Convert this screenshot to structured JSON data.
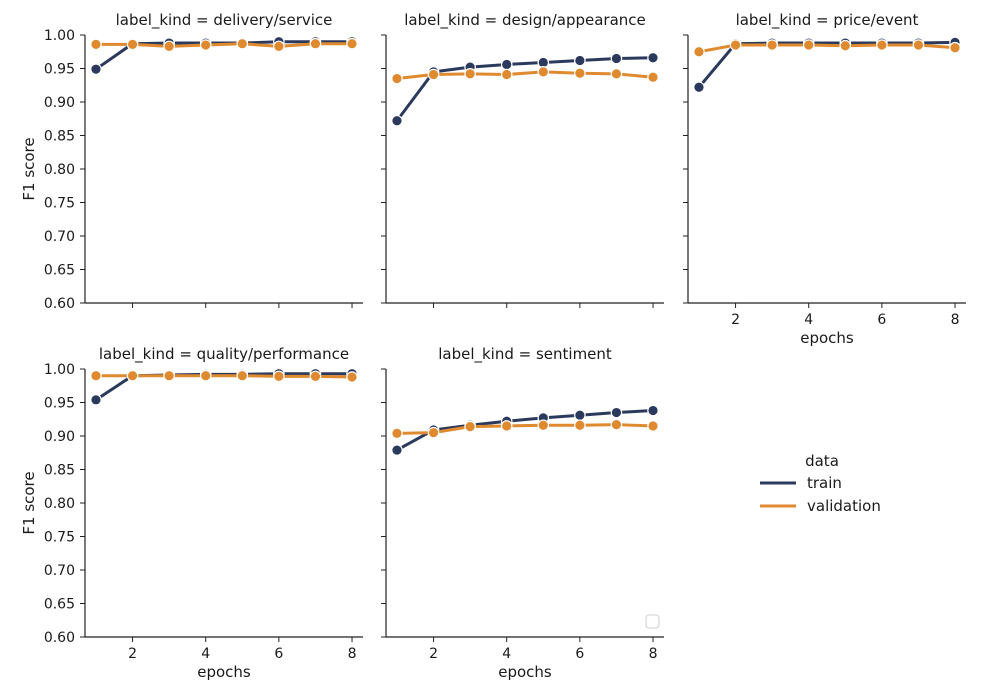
{
  "chart_data": {
    "type": "line",
    "layout": "facet-grid",
    "colors": {
      "train": "#2b3a5c",
      "validation": "#e08a30"
    },
    "ylabel": "F1 score",
    "xlabel": "epochs",
    "ylim": [
      0.6,
      1.0
    ],
    "yticks": [
      "0.60",
      "0.65",
      "0.70",
      "0.75",
      "0.80",
      "0.85",
      "0.90",
      "0.95",
      "1.00"
    ],
    "xlim": [
      0.7,
      8.3
    ],
    "xticks": [
      "2",
      "4",
      "6",
      "8"
    ],
    "x": [
      1,
      2,
      3,
      4,
      5,
      6,
      7,
      8
    ],
    "panels": [
      {
        "title": "label_kind = delivery/service",
        "series": [
          {
            "name": "train",
            "values": [
              0.949,
              0.987,
              0.988,
              0.988,
              0.988,
              0.99,
              0.99,
              0.99
            ]
          },
          {
            "name": "validation",
            "values": [
              0.986,
              0.986,
              0.983,
              0.985,
              0.987,
              0.983,
              0.987,
              0.987
            ]
          }
        ]
      },
      {
        "title": "label_kind = design/appearance",
        "series": [
          {
            "name": "train",
            "values": [
              0.872,
              0.945,
              0.952,
              0.956,
              0.959,
              0.962,
              0.965,
              0.966
            ]
          },
          {
            "name": "validation",
            "values": [
              0.935,
              0.941,
              0.942,
              0.941,
              0.945,
              0.943,
              0.942,
              0.937
            ]
          }
        ]
      },
      {
        "title": "label_kind = price/event",
        "series": [
          {
            "name": "train",
            "values": [
              0.922,
              0.987,
              0.988,
              0.988,
              0.988,
              0.988,
              0.988,
              0.989
            ]
          },
          {
            "name": "validation",
            "values": [
              0.975,
              0.985,
              0.985,
              0.985,
              0.984,
              0.985,
              0.985,
              0.981
            ]
          }
        ]
      },
      {
        "title": "label_kind = quality/performance",
        "series": [
          {
            "name": "train",
            "values": [
              0.954,
              0.99,
              0.991,
              0.992,
              0.992,
              0.993,
              0.993,
              0.993
            ]
          },
          {
            "name": "validation",
            "values": [
              0.99,
              0.99,
              0.99,
              0.99,
              0.99,
              0.989,
              0.989,
              0.988
            ]
          }
        ]
      },
      {
        "title": "label_kind = sentiment",
        "series": [
          {
            "name": "train",
            "values": [
              0.879,
              0.909,
              0.916,
              0.922,
              0.927,
              0.931,
              0.935,
              0.938
            ]
          },
          {
            "name": "validation",
            "values": [
              0.904,
              0.905,
              0.914,
              0.915,
              0.916,
              0.916,
              0.917,
              0.915
            ]
          }
        ]
      }
    ],
    "legend": {
      "title": "data",
      "position": "right",
      "entries": [
        "train",
        "validation"
      ]
    }
  }
}
